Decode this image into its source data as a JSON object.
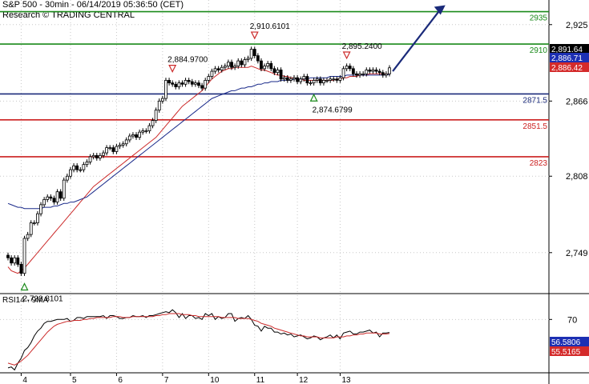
{
  "header": {
    "line1": "S&P 500 - 30min - 06/14/2019 05:36:50 (CET)",
    "line2": "Research © TRADING CENTRAL"
  },
  "chart_data": {
    "type": "candlestick",
    "symbol": "S&P 500",
    "interval": "30min",
    "ylim": [
      2718,
      2944
    ],
    "y_ticks": [
      2925,
      2866,
      2808,
      2749
    ],
    "x_labels": [
      {
        "label": "4",
        "index": 4
      },
      {
        "label": "5",
        "index": 19
      },
      {
        "label": "6",
        "index": 33
      },
      {
        "label": "7",
        "index": 47
      },
      {
        "label": "10",
        "index": 61
      },
      {
        "label": "11",
        "index": 75
      },
      {
        "label": "12",
        "index": 88
      },
      {
        "label": "13",
        "index": 101
      }
    ],
    "levels": [
      {
        "value": 2935,
        "label": "2935",
        "color": "#1a8a1a"
      },
      {
        "value": 2910,
        "label": "2910",
        "color": "#1a8a1a"
      },
      {
        "value": 2871.5,
        "label": "2871.5",
        "color": "#1a2a7a"
      },
      {
        "value": 2851.5,
        "label": "2851.5",
        "color": "#cc1f1f"
      },
      {
        "value": 2823,
        "label": "2823",
        "color": "#cc1f1f"
      }
    ],
    "annotations": [
      {
        "text": "2,910.6101",
        "index": 75,
        "value": 2910.6101,
        "kind": "high"
      },
      {
        "text": "2,884.9700",
        "index": 50,
        "value": 2884.97,
        "kind": "high"
      },
      {
        "text": "2,895.2400",
        "index": 103,
        "value": 2895.24,
        "kind": "high"
      },
      {
        "text": "2,874.6799",
        "index": 93,
        "value": 2874.6799,
        "kind": "low"
      },
      {
        "text": "2,728.8101",
        "index": 5,
        "value": 2728.8101,
        "kind": "low"
      }
    ],
    "price_tags": [
      {
        "text": "2,891.64",
        "value": 2891.64,
        "bg": "#000000",
        "fg": "#ffffff"
      },
      {
        "text": "2,886.71",
        "value": 2886.71,
        "bg": "#1c2fb3",
        "fg": "#ffffff"
      },
      {
        "text": "2,886.42",
        "value": 2886.42,
        "bg": "#d42a2a",
        "fg": "#ffffff"
      }
    ],
    "forecast_arrow": {
      "from": {
        "index": 117,
        "value": 2889
      },
      "to": {
        "index": 133,
        "value": 2940
      },
      "color": "#1a2a7a"
    },
    "close": [
      2745,
      2741,
      2745,
      2740,
      2733,
      2760,
      2763,
      2772,
      2772,
      2779,
      2786,
      2790,
      2792,
      2791,
      2788,
      2796,
      2791,
      2805,
      2808,
      2813,
      2816,
      2813,
      2813,
      2817,
      2819,
      2823,
      2824,
      2822,
      2824,
      2826,
      2830,
      2830,
      2827,
      2831,
      2832,
      2833,
      2836,
      2839,
      2840,
      2838,
      2842,
      2843,
      2843,
      2847,
      2851,
      2859,
      2866,
      2868,
      2882,
      2880,
      2879,
      2877,
      2880,
      2879,
      2882,
      2881,
      2879,
      2880,
      2878,
      2876,
      2882,
      2885,
      2889,
      2891,
      2890,
      2892,
      2893,
      2896,
      2892,
      2893,
      2897,
      2894,
      2898,
      2899,
      2906,
      2901,
      2897,
      2891,
      2893,
      2895,
      2891,
      2888,
      2890,
      2883,
      2884,
      2882,
      2883,
      2884,
      2881,
      2883,
      2885,
      2880,
      2880,
      2882,
      2883,
      2880,
      2882,
      2882,
      2883,
      2883,
      2882,
      2884,
      2891,
      2893,
      2891,
      2887,
      2886,
      2887,
      2887,
      2890,
      2889,
      2890,
      2889,
      2888,
      2886,
      2887,
      2891.64
    ],
    "series": [
      {
        "name": "MA fast",
        "color": "#cc2a2a",
        "values": [
          2738,
          2735,
          2734,
          2733,
          2735,
          2737,
          2740,
          2743,
          2746,
          2749,
          2752,
          2755,
          2758,
          2761,
          2764,
          2767,
          2770,
          2773,
          2776,
          2779,
          2782,
          2785,
          2788,
          2791,
          2794,
          2797,
          2800,
          2802,
          2804,
          2806,
          2808,
          2810,
          2812,
          2814,
          2816,
          2818,
          2820,
          2822,
          2824,
          2826,
          2828,
          2830,
          2832,
          2834,
          2836,
          2838,
          2841,
          2844,
          2847,
          2850,
          2853,
          2856,
          2859,
          2862,
          2864,
          2866,
          2868,
          2870,
          2872,
          2874,
          2877,
          2880,
          2883,
          2885,
          2887,
          2889,
          2890,
          2891,
          2891,
          2892,
          2892,
          2892,
          2892,
          2892,
          2893,
          2892,
          2891,
          2890,
          2890,
          2889,
          2888,
          2887,
          2886,
          2886,
          2885,
          2885,
          2884,
          2884,
          2883,
          2883,
          2882,
          2882,
          2882,
          2882,
          2882,
          2882,
          2882,
          2882,
          2882,
          2882,
          2883,
          2883,
          2884,
          2884,
          2885,
          2885,
          2885,
          2886,
          2886,
          2886,
          2887,
          2887,
          2887,
          2887,
          2887,
          2887,
          2886.42
        ]
      },
      {
        "name": "MA slow",
        "color": "#1a2a8a",
        "values": [
          2787,
          2786,
          2785,
          2784,
          2784,
          2783,
          2783,
          2783,
          2783,
          2783,
          2783,
          2784,
          2784,
          2784,
          2785,
          2785,
          2786,
          2787,
          2787,
          2788,
          2788,
          2789,
          2790,
          2791,
          2792,
          2794,
          2796,
          2798,
          2800,
          2802,
          2804,
          2806,
          2808,
          2810,
          2812,
          2814,
          2816,
          2818,
          2820,
          2822,
          2824,
          2826,
          2828,
          2830,
          2832,
          2834,
          2836,
          2838,
          2840,
          2842,
          2844,
          2846,
          2848,
          2850,
          2852,
          2854,
          2856,
          2858,
          2860,
          2862,
          2864,
          2866,
          2868,
          2869,
          2870,
          2871,
          2872,
          2873,
          2874,
          2874,
          2875,
          2876,
          2876,
          2877,
          2877,
          2878,
          2879,
          2879,
          2880,
          2880,
          2881,
          2881,
          2881,
          2882,
          2882,
          2882,
          2882,
          2883,
          2883,
          2883,
          2883,
          2883,
          2884,
          2884,
          2884,
          2884,
          2884,
          2884,
          2885,
          2885,
          2885,
          2885,
          2885,
          2886,
          2886,
          2886,
          2886,
          2886,
          2886,
          2886,
          2886,
          2886,
          2886,
          2886,
          2886,
          2886,
          2886.71
        ]
      }
    ],
    "rsi": {
      "title": "RSI14 - 9MA",
      "ylim": [
        15,
        95
      ],
      "ticks": [
        70
      ],
      "rsi_tag": {
        "text": "56.5806",
        "value": 56.5806,
        "bg": "#1c2fb3",
        "fg": "#ffffff"
      },
      "ma_tag": {
        "text": "55.5165",
        "value": 55.5165,
        "bg": "#d42a2a",
        "fg": "#ffffff"
      },
      "rsi_values": [
        20,
        21,
        18,
        25,
        30,
        38,
        41,
        46,
        53,
        58,
        61,
        66,
        68,
        68,
        69,
        70,
        70,
        70,
        71,
        68,
        69,
        72,
        72,
        71,
        73,
        73,
        73,
        73,
        73,
        74,
        71,
        74,
        74,
        73,
        71,
        71,
        72,
        72,
        74,
        73,
        73,
        74,
        72,
        74,
        74,
        75,
        76,
        77,
        78,
        77,
        80,
        77,
        72,
        76,
        71,
        74,
        74,
        71,
        72,
        70,
        76,
        74,
        76,
        70,
        73,
        71,
        72,
        76,
        76,
        68,
        71,
        72,
        71,
        74,
        70,
        64,
        63,
        58,
        63,
        61,
        61,
        57,
        57,
        55,
        56,
        54,
        55,
        52,
        53,
        54,
        52,
        50,
        51,
        53,
        52,
        49,
        51,
        52,
        54,
        51,
        54,
        50,
        56,
        57,
        58,
        55,
        55,
        57,
        57,
        58,
        59,
        56,
        57,
        52,
        56,
        56,
        56.58
      ],
      "ma_values": [
        25,
        24,
        23,
        25,
        27,
        30,
        33,
        37,
        41,
        45,
        49,
        53,
        57,
        60,
        63,
        65,
        66,
        67,
        68,
        68,
        69,
        69,
        69,
        70,
        70,
        71,
        71,
        72,
        72,
        72,
        72,
        72,
        73,
        73,
        73,
        72,
        72,
        72,
        73,
        73,
        73,
        73,
        73,
        73,
        73,
        74,
        74,
        75,
        75,
        76,
        76,
        76,
        76,
        75,
        75,
        75,
        74,
        74,
        73,
        73,
        73,
        73,
        73,
        73,
        73,
        72,
        72,
        72,
        72,
        72,
        71,
        71,
        71,
        71,
        70,
        69,
        68,
        66,
        65,
        64,
        63,
        61,
        60,
        59,
        58,
        57,
        56,
        55,
        54,
        53,
        53,
        52,
        52,
        52,
        52,
        51,
        51,
        51,
        51,
        51,
        52,
        52,
        52,
        53,
        53,
        54,
        54,
        55,
        55,
        56,
        56,
        56,
        56,
        55,
        55,
        55,
        55.52
      ]
    }
  }
}
